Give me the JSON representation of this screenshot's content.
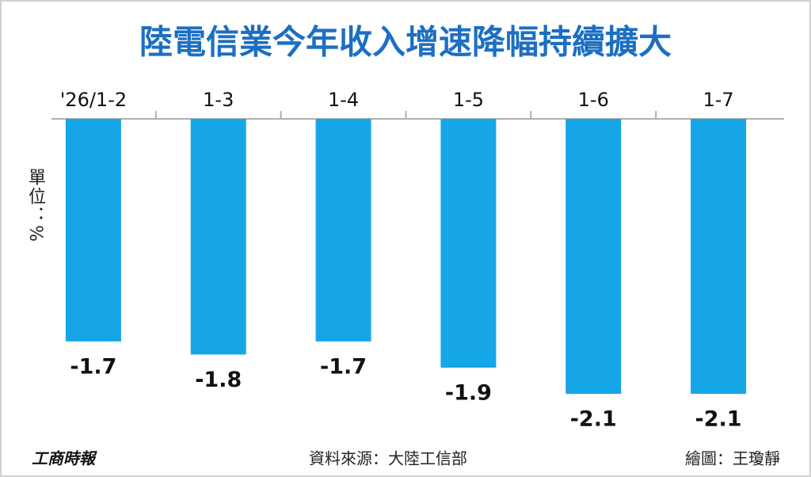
{
  "chart_data": {
    "type": "bar",
    "title": "陸電信業今年收入增速降幅持續擴大",
    "unit_label": "單位：%",
    "categories": [
      "'26/1-2",
      "1-3",
      "1-4",
      "1-5",
      "1-6",
      "1-7"
    ],
    "values": [
      -1.7,
      -1.8,
      -1.7,
      -1.9,
      -2.1,
      -2.1
    ],
    "color": "#16a6e8",
    "source": "資料來源：大陸工信部",
    "credit": "繪圖：王瓊靜",
    "logo": "工商時報"
  }
}
